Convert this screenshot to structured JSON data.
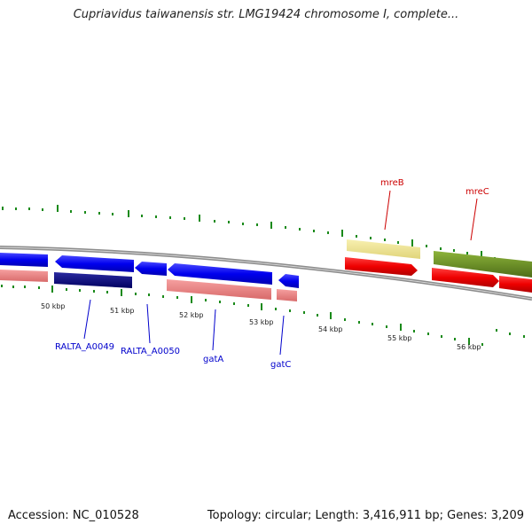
{
  "title": "Cupriavidus taiwanensis str. LMG19424 chromosome I, complete...",
  "footer": {
    "accession": "Accession: NC_010528",
    "summary": "Topology: circular; Length: 3,416,911 bp; Genes: 3,209"
  },
  "scale_labels": [
    "50 kbp",
    "51 kbp",
    "52 kbp",
    "53 kbp",
    "54 kbp",
    "55 kbp",
    "56 kbp"
  ],
  "gene_labels": [
    {
      "text": "RALTA_A0049",
      "color": "#0000cc"
    },
    {
      "text": "RALTA_A0050",
      "color": "#0000cc"
    },
    {
      "text": "gatA",
      "color": "#0000cc"
    },
    {
      "text": "gatC",
      "color": "#0000cc"
    },
    {
      "text": "mreB",
      "color": "#cc0000"
    },
    {
      "text": "mreC",
      "color": "#cc0000"
    }
  ],
  "colors": {
    "backbone": "#8c8c8c",
    "tick": "#1a8a1a",
    "reverse_gene": "#1010ee",
    "reverse_gene_dark": "#000080",
    "forward_gene": "#ee1010",
    "rna_pink": "#f08080",
    "pale_yellow": "#f0e68c",
    "olive": "#6b8e23"
  }
}
